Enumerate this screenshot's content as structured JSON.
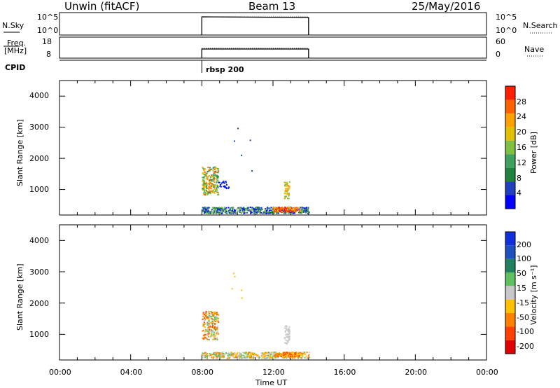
{
  "header": {
    "radar": "Unwin (fitACF)",
    "beam": "Beam 13",
    "date": "25/May/2016"
  },
  "top_panels": {
    "nsky_label": "N.Sky",
    "nsky_ticks": [
      "10^5",
      "10^0"
    ],
    "nsky_ticks_right": [
      "10^5",
      "10^0"
    ],
    "nsearch_label": "N.Search",
    "freq_label": "Freq.",
    "freq_unit": "[MHz]",
    "freq_ticks": [
      "18",
      "8"
    ],
    "nave_ticks": [
      "60",
      "0"
    ],
    "nave_label": "Nave",
    "cpid_label": "CPID",
    "cpid_value": "rbsp 200"
  },
  "power_panel": {
    "ylabel": "Slant Range [km]",
    "yticks": [
      "4000",
      "3000",
      "2000",
      "1000"
    ],
    "colorbar_label": "Power [dB]",
    "colorbar_ticks": [
      "28",
      "24",
      "20",
      "16",
      "12",
      "8",
      "4"
    ],
    "colors": [
      "#0000ff",
      "#2040c0",
      "#208040",
      "#40a060",
      "#80c040",
      "#e0c000",
      "#ffa000",
      "#ff6000",
      "#ff2000"
    ]
  },
  "velocity_panel": {
    "ylabel": "Slant Range [km]",
    "yticks": [
      "4000",
      "3000",
      "2000",
      "1000"
    ],
    "colorbar_label": "Velocity [m s⁻¹]",
    "colorbar_ticks": [
      "200",
      "100",
      "50",
      "15",
      "-15",
      "-50",
      "-100",
      "-200"
    ],
    "colors": [
      "#1030e0",
      "#2050c0",
      "#208060",
      "#60c060",
      "#c8c8c8",
      "#ffc000",
      "#ff8000",
      "#ff4000",
      "#e00000"
    ]
  },
  "xaxis": {
    "ticks": [
      "00:00",
      "04:00",
      "08:00",
      "12:00",
      "16:00",
      "20:00",
      "00:00"
    ],
    "label": "Time UT"
  },
  "chart_data": [
    {
      "type": "heatmap",
      "title": "Beam 13",
      "xlabel": "Time UT",
      "ylabel": "Slant Range [km]",
      "xlim_hours": [
        0,
        24
      ],
      "ylim": [
        180,
        4500
      ],
      "colorbar": "Power [dB]",
      "data_time_range_hours": [
        8,
        14
      ],
      "regions": [
        {
          "t": [
            8.0,
            8.9
          ],
          "range": [
            850,
            1750
          ],
          "value": "12-24 dB"
        },
        {
          "t": [
            8.0,
            14.0
          ],
          "range": [
            250,
            450
          ],
          "value": "4-28 dB"
        },
        {
          "t": [
            12.6,
            12.9
          ],
          "range": [
            700,
            1300
          ],
          "value": "16-24 dB"
        }
      ]
    },
    {
      "type": "heatmap",
      "xlabel": "Time UT",
      "ylabel": "Slant Range [km]",
      "xlim_hours": [
        0,
        24
      ],
      "ylim": [
        180,
        4500
      ],
      "colorbar": "Velocity [m s-1]",
      "data_time_range_hours": [
        8,
        14
      ],
      "regions": [
        {
          "t": [
            8.0,
            8.9
          ],
          "range": [
            850,
            1750
          ],
          "value": "-15 to -100 m/s"
        },
        {
          "t": [
            8.0,
            14.0
          ],
          "range": [
            250,
            450
          ],
          "value": "-15 to -50 m/s"
        },
        {
          "t": [
            12.6,
            12.9
          ],
          "range": [
            700,
            1300
          ],
          "value": "-15 to 15 m/s"
        }
      ]
    }
  ]
}
